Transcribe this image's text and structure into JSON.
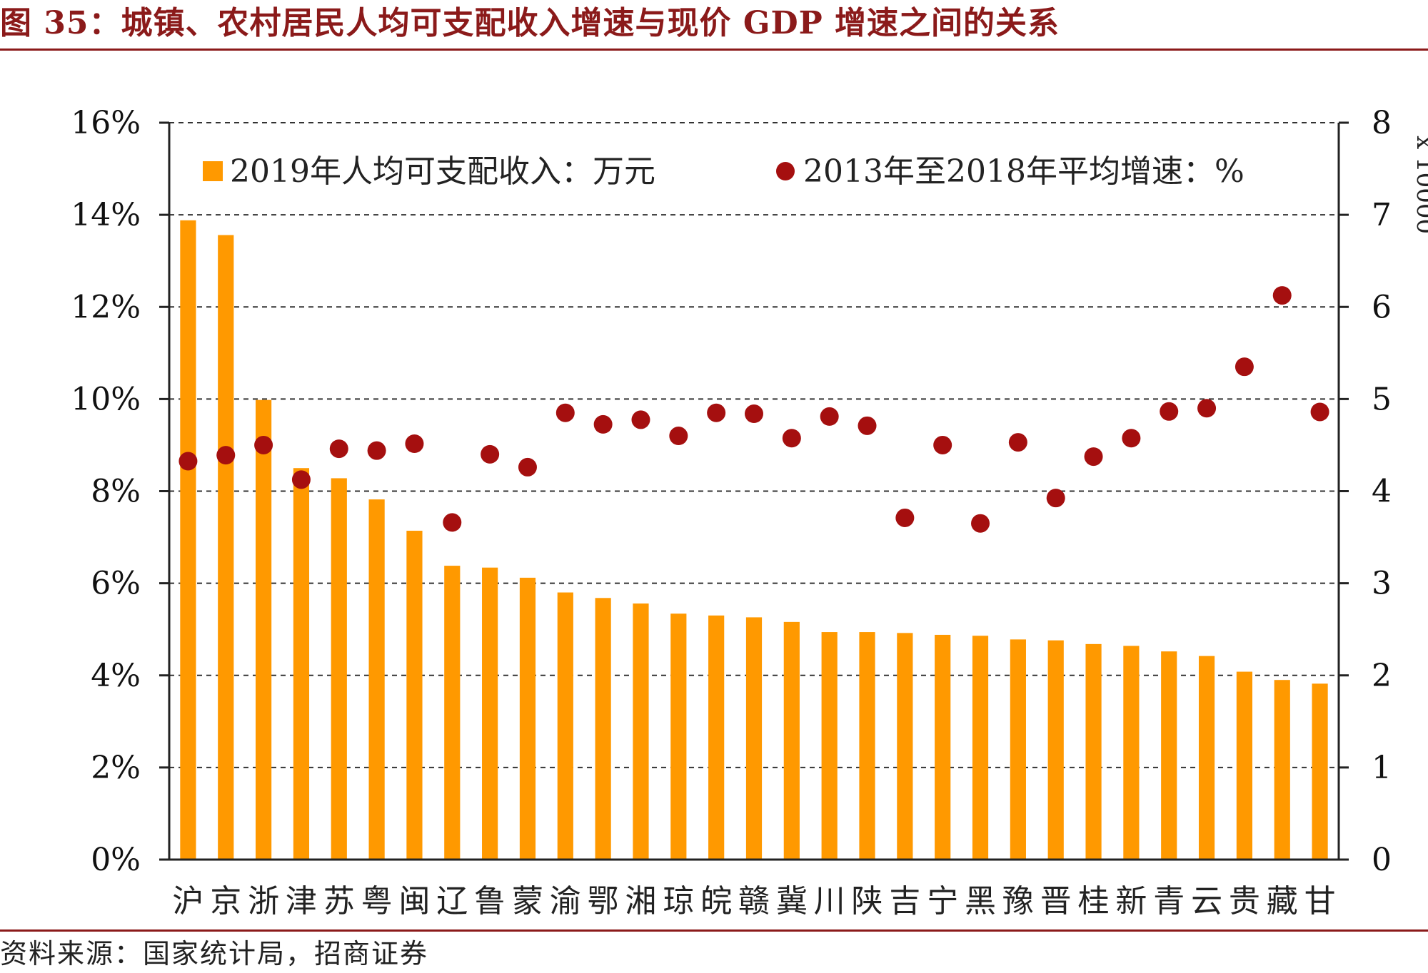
{
  "figure": {
    "title": "图 35：城镇、农村居民人均可支配收入增速与现价 GDP 增速之间的关系",
    "source": "资料来源：国家统计局，招商证券"
  },
  "colors": {
    "bar": "#ff9900",
    "dot": "#a50f0f",
    "accent": "#8b1a1a",
    "grid": "#333333"
  },
  "chart_data": {
    "type": "bar",
    "categories": [
      "沪",
      "京",
      "浙",
      "津",
      "苏",
      "粤",
      "闽",
      "辽",
      "鲁",
      "蒙",
      "渝",
      "鄂",
      "湘",
      "琼",
      "皖",
      "赣",
      "冀",
      "川",
      "陕",
      "吉",
      "宁",
      "黑",
      "豫",
      "晋",
      "桂",
      "新",
      "青",
      "云",
      "贵",
      "藏",
      "甘"
    ],
    "series": [
      {
        "name": "2019年人均可支配收入：万元",
        "type": "bar",
        "axis": "right",
        "values": [
          6.94,
          6.78,
          4.99,
          4.25,
          4.14,
          3.91,
          3.57,
          3.19,
          3.17,
          3.06,
          2.9,
          2.84,
          2.78,
          2.67,
          2.65,
          2.63,
          2.58,
          2.47,
          2.47,
          2.46,
          2.44,
          2.43,
          2.39,
          2.38,
          2.34,
          2.32,
          2.26,
          2.21,
          2.04,
          1.95,
          1.91
        ]
      },
      {
        "name": "2013年至2018年平均增速：%",
        "type": "scatter",
        "axis": "left",
        "values": [
          8.65,
          8.78,
          9.0,
          8.25,
          8.92,
          8.88,
          9.03,
          7.32,
          8.8,
          8.52,
          9.7,
          9.45,
          9.55,
          9.2,
          9.7,
          9.68,
          9.15,
          9.62,
          9.42,
          7.42,
          9.0,
          7.3,
          9.06,
          7.85,
          8.75,
          9.15,
          9.73,
          9.8,
          10.7,
          12.25,
          9.72
        ]
      }
    ],
    "y_left": {
      "min": 0,
      "max": 16,
      "ticks": [
        "0%",
        "2%",
        "4%",
        "6%",
        "8%",
        "10%",
        "12%",
        "14%",
        "16%"
      ]
    },
    "y_right": {
      "min": 0,
      "max": 8,
      "ticks": [
        "0",
        "1",
        "2",
        "3",
        "4",
        "5",
        "6",
        "7",
        "8"
      ],
      "unit": "x 10000"
    },
    "grid": true,
    "legend": {
      "placement": "top",
      "items": [
        "2019年人均可支配收入：万元",
        "2013年至2018年平均增速：%"
      ]
    }
  }
}
